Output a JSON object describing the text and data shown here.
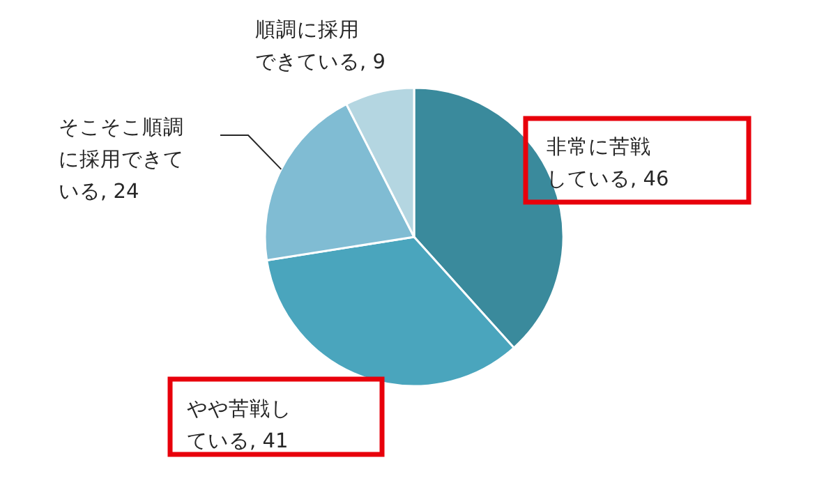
{
  "chart_data": {
    "type": "pie",
    "categories": [
      "非常に苦戦している",
      "やや苦戦している",
      "そこそこ順調に採用できている",
      "順調に採用できている"
    ],
    "values": [
      46,
      41,
      24,
      9
    ],
    "value_labels": [
      ", 46",
      ", 41",
      ", 24",
      ", 9"
    ],
    "colors": [
      "#3a8a9c",
      "#4aa5bd",
      "#80bcd3",
      "#b4d6e1"
    ]
  }
}
